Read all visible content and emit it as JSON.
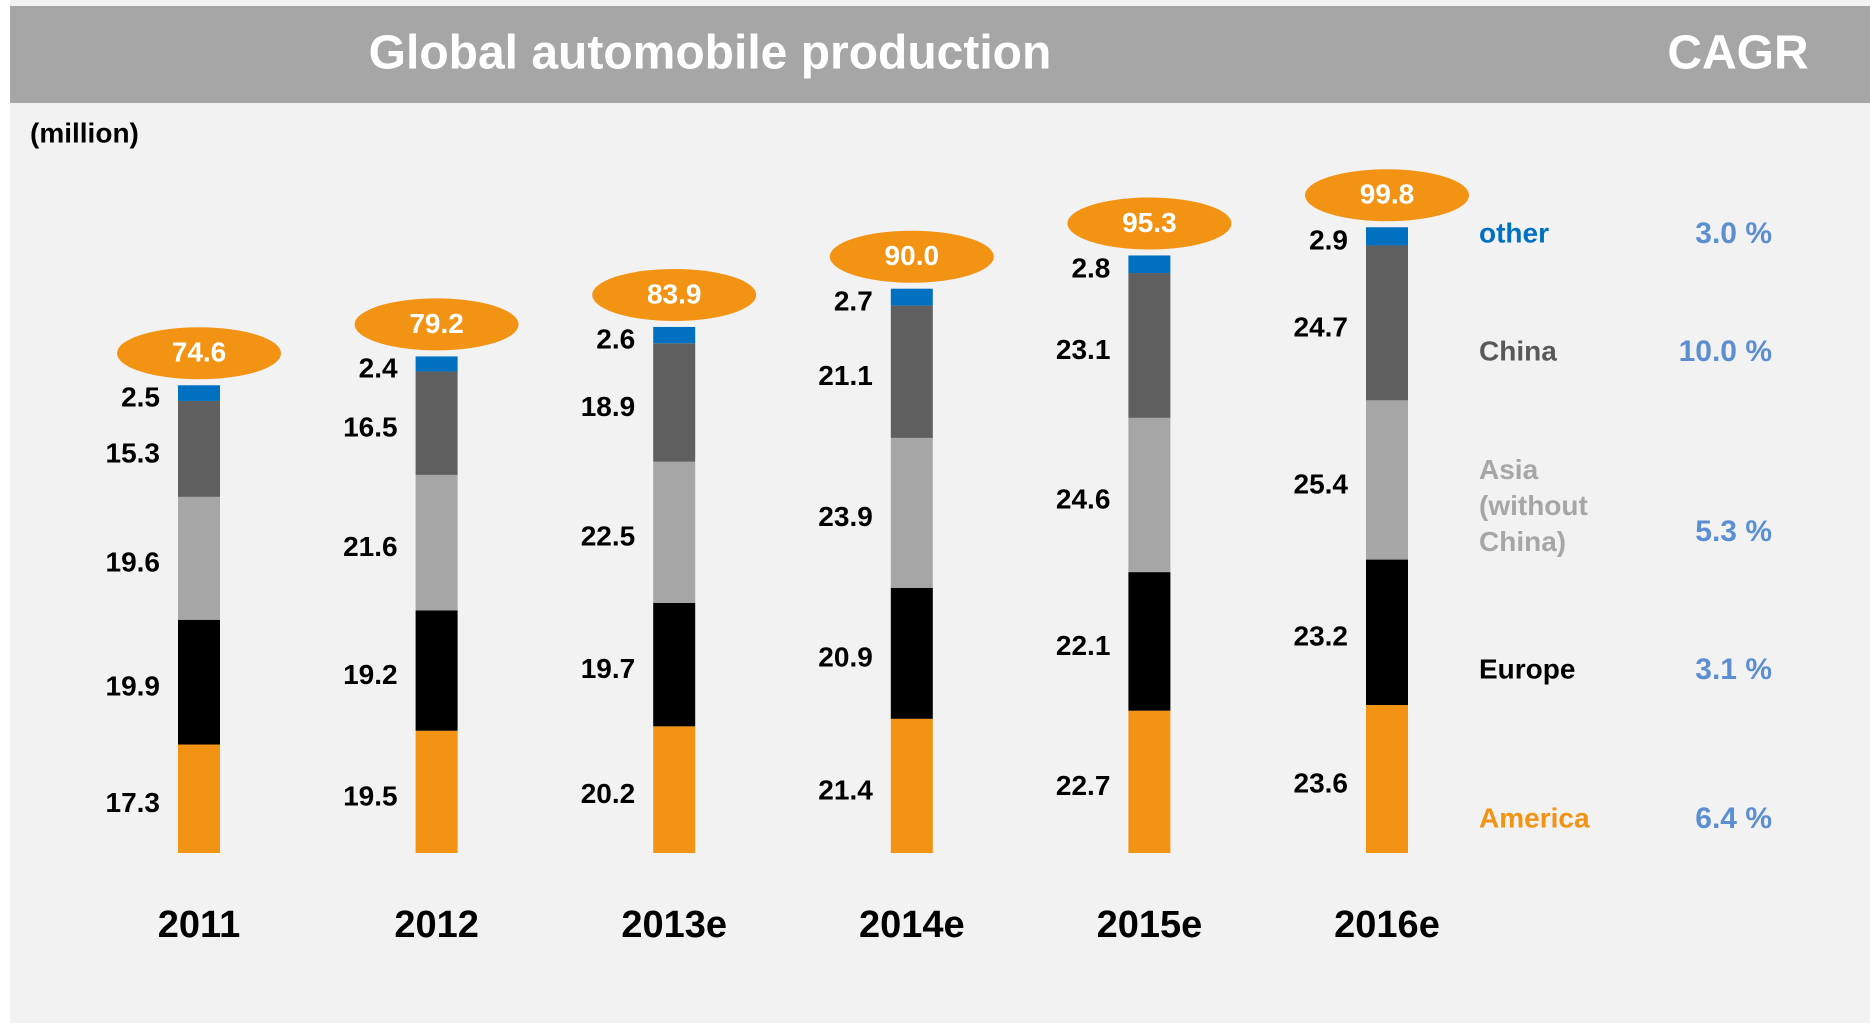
{
  "chart_data": {
    "type": "stacked_bar",
    "title": "Global automobile production",
    "cagr_title": "CAGR",
    "unit_label": "(million)",
    "categories": [
      "2011",
      "2012",
      "2013e",
      "2014e",
      "2015e",
      "2016e"
    ],
    "ylim": [
      0,
      100
    ],
    "series": [
      {
        "name": "America",
        "color": "#f39314",
        "cagr": "6.4 %",
        "values": [
          17.3,
          19.5,
          20.2,
          21.4,
          22.7,
          23.6
        ]
      },
      {
        "name": "Europe",
        "color": "#000000",
        "cagr": "3.1 %",
        "values": [
          19.9,
          19.2,
          19.7,
          20.9,
          22.1,
          23.2
        ]
      },
      {
        "name": "Asia (without China)",
        "color": "#a6a6a6",
        "cagr": "5.3 %",
        "values": [
          19.6,
          21.6,
          22.5,
          23.9,
          24.6,
          25.4
        ]
      },
      {
        "name": "China",
        "color": "#5f5f5f",
        "cagr": "10.0 %",
        "values": [
          15.3,
          16.5,
          18.9,
          21.1,
          23.1,
          24.7
        ]
      },
      {
        "name": "other",
        "color": "#0070c0",
        "cagr": "3.0 %",
        "values": [
          2.5,
          2.4,
          2.6,
          2.7,
          2.8,
          2.9
        ]
      }
    ],
    "totals": {
      "color": "#f39314",
      "values": [
        74.6,
        79.2,
        83.9,
        90.0,
        95.3,
        99.8
      ],
      "value_labels": [
        "74.6",
        "79.2",
        "83.9",
        "90.0",
        "95.3",
        "99.8"
      ]
    }
  }
}
